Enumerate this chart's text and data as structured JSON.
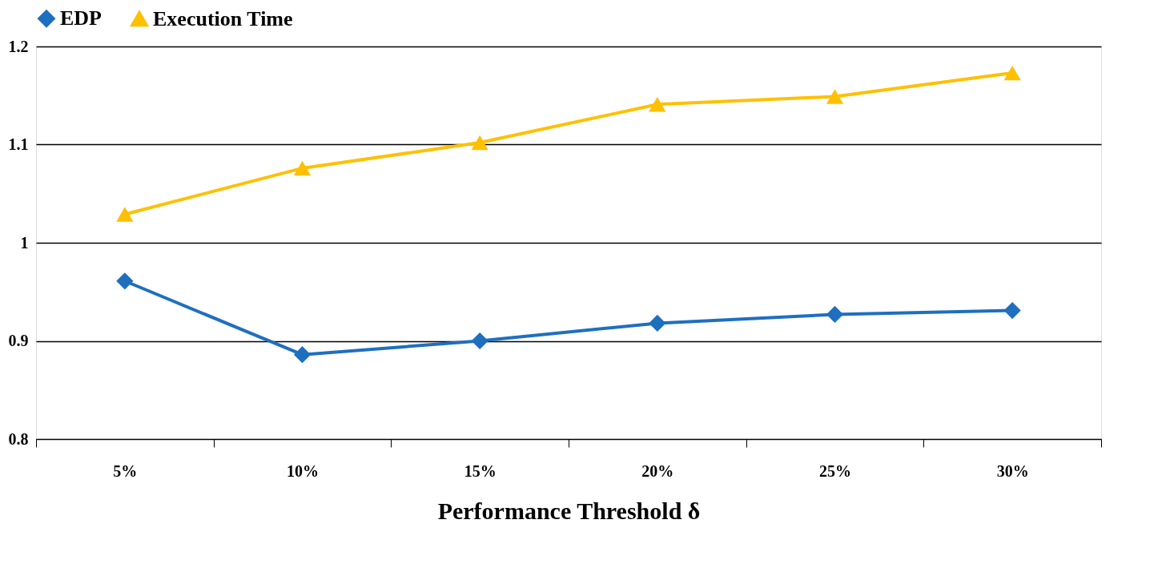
{
  "chart_data": {
    "type": "line",
    "xlabel": "Performance Threshold δ",
    "categories": [
      "5%",
      "10%",
      "15%",
      "20%",
      "25%",
      "30%"
    ],
    "series": [
      {
        "name": "EDP",
        "color": "#1f6fbf",
        "marker": "diamond",
        "values": [
          0.961,
          0.886,
          0.9,
          0.918,
          0.927,
          0.931
        ]
      },
      {
        "name": "Execution Time",
        "color": "#ffc000",
        "marker": "triangle",
        "values": [
          1.029,
          1.076,
          1.102,
          1.141,
          1.149,
          1.173
        ]
      }
    ],
    "ylim": [
      0.8,
      1.2
    ],
    "yticks": [
      0.8,
      0.9,
      1,
      1.1,
      1.2
    ],
    "grid": "y",
    "legend": "top",
    "line_style": "solid"
  }
}
